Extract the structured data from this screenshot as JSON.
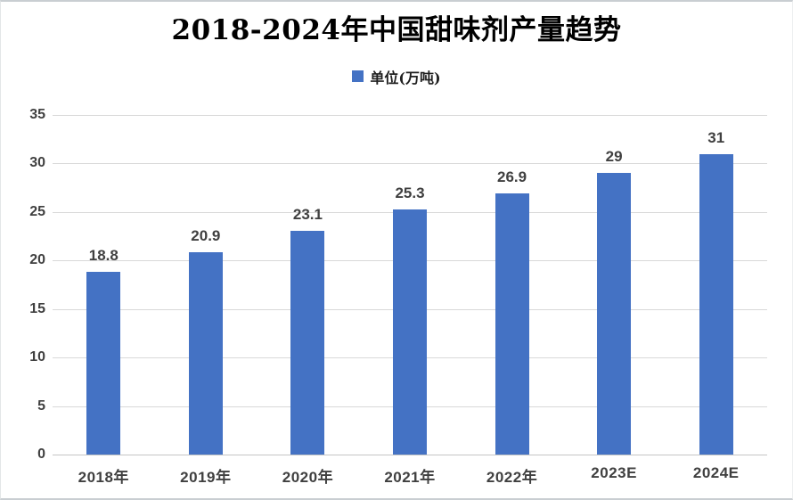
{
  "chart_data": {
    "type": "bar",
    "title": "2018-2024年中国甜味剂产量趋势",
    "legend": "单位(万吨)",
    "legend_position": "top",
    "categories": [
      "2018年",
      "2019年",
      "2020年",
      "2021年",
      "2022年",
      "2023E",
      "2024E"
    ],
    "values": [
      18.8,
      20.9,
      23.1,
      25.3,
      26.9,
      29,
      31
    ],
    "value_labels": [
      "18.8",
      "20.9",
      "23.1",
      "25.3",
      "26.9",
      "29",
      "31"
    ],
    "xlabel": "",
    "ylabel": "",
    "ylim": [
      0,
      35
    ],
    "yticks": [
      0,
      5,
      10,
      15,
      20,
      25,
      30,
      35
    ],
    "grid": true,
    "bar_color": "#4472C4",
    "gridline_color": "#D9D9D9",
    "baseline_color": "#C4C4C4",
    "axis_label_color": "#404040"
  }
}
